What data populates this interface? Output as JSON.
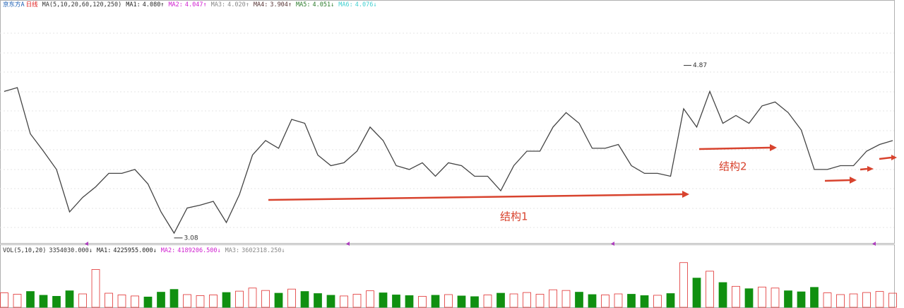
{
  "chart_data": [
    {
      "type": "line",
      "title": "京东方A",
      "period": "日线",
      "ma_label": "MA(5,10,20,60,120,250)",
      "indicators": [
        {
          "label": "MA1:",
          "value": "4.080↑",
          "color": "#222222"
        },
        {
          "label": "MA2:",
          "value": "4.047↑",
          "color": "#d020d0"
        },
        {
          "label": "MA3:",
          "value": "4.020↑",
          "color": "#888888"
        },
        {
          "label": "MA4:",
          "value": "3.904↑",
          "color": "#553333"
        },
        {
          "label": "MA5:",
          "value": "4.051↓",
          "color": "#2a7a2a"
        },
        {
          "label": "MA6:",
          "value": "4.076↓",
          "color": "#40d0d0"
        }
      ],
      "color": "#444444",
      "values": [
        4.6,
        4.64,
        4.16,
        3.98,
        3.79,
        3.35,
        3.5,
        3.61,
        3.75,
        3.75,
        3.79,
        3.64,
        3.35,
        3.13,
        3.39,
        3.42,
        3.46,
        3.24,
        3.53,
        3.94,
        4.09,
        4.01,
        4.31,
        4.27,
        3.94,
        3.83,
        3.86,
        3.98,
        4.23,
        4.09,
        3.83,
        3.79,
        3.86,
        3.72,
        3.86,
        3.83,
        3.72,
        3.72,
        3.57,
        3.83,
        3.98,
        3.98,
        4.23,
        4.38,
        4.27,
        4.01,
        4.01,
        4.05,
        3.83,
        3.75,
        3.75,
        3.72,
        4.42,
        4.23,
        4.6,
        4.27,
        4.35,
        4.27,
        4.45,
        4.49,
        4.38,
        4.2,
        3.79,
        3.79,
        3.83,
        3.83,
        3.98,
        4.05,
        4.09
      ],
      "high": 4.87,
      "low": 3.08,
      "ylim": [
        3.02,
        5.49
      ],
      "annotations": [
        "结构1",
        "结构2"
      ]
    },
    {
      "type": "bar",
      "title": "VOL(5,10,20)",
      "value_text": "3354030.000↓",
      "indicators": [
        {
          "label": "MA1:",
          "value": "4225955.000↓",
          "color": "#222222"
        },
        {
          "label": "MA2:",
          "value": "4189206.500↓",
          "color": "#d020d0"
        },
        {
          "label": "MA3:",
          "value": "3602318.250↓",
          "color": "#888888"
        }
      ],
      "up_color": "#e03030",
      "down_color": "#109010",
      "values": [
        4200000,
        3800000,
        4600000,
        3500000,
        3200000,
        4800000,
        3900000,
        11000000,
        4100000,
        3600000,
        3300000,
        3000000,
        4400000,
        5200000,
        3700000,
        3400000,
        3600000,
        4300000,
        4700000,
        5600000,
        4900000,
        4100000,
        5300000,
        4600000,
        4000000,
        3500000,
        3300000,
        3800000,
        4800000,
        4200000,
        3600000,
        3400000,
        3200000,
        3500000,
        3700000,
        3300000,
        3100000,
        3600000,
        4100000,
        3900000,
        4300000,
        3800000,
        5100000,
        4900000,
        4400000,
        3700000,
        3600000,
        3900000,
        3800000,
        3400000,
        3500000,
        4000000,
        13000000,
        8500000,
        10500000,
        7200000,
        6100000,
        5400000,
        5900000,
        5600000,
        4800000,
        4500000,
        5800000,
        4200000,
        3700000,
        3900000,
        4300000,
        4600000,
        4100000
      ],
      "ylim": [
        0,
        15000000
      ]
    }
  ]
}
